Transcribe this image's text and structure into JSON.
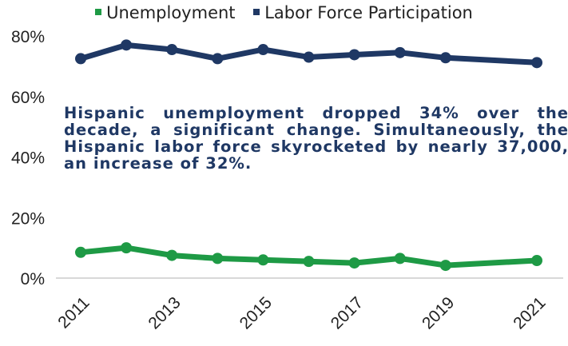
{
  "chart_data": {
    "type": "line",
    "x": [
      "2011",
      "2012",
      "2013",
      "2014",
      "2015",
      "2016",
      "2017",
      "2018",
      "2019",
      "2020",
      "2021"
    ],
    "x_tick_labels": [
      "2011",
      "2013",
      "2015",
      "2017",
      "2019",
      "2021"
    ],
    "y_tick_labels": [
      "0%",
      "20%",
      "40%",
      "60%",
      "80%"
    ],
    "ylim": [
      0,
      80
    ],
    "grid": false,
    "legend_position": "top",
    "series": [
      {
        "name": "Unemployment",
        "color": "#1e9a45",
        "values": [
          8.5,
          10.0,
          7.5,
          6.5,
          6.0,
          5.5,
          5.0,
          6.5,
          4.2,
          null,
          5.8
        ]
      },
      {
        "name": "Labor Force Participation",
        "color": "#1f3864",
        "values": [
          72.5,
          77.0,
          75.5,
          72.5,
          75.5,
          73.0,
          73.8,
          74.5,
          72.8,
          null,
          71.2
        ]
      }
    ],
    "annotation": "Hispanic unemployment dropped 34% over the decade, a significant change. Simultaneously, the Hispanic labor force skyrocketed by nearly 37,000, an increase of 32%."
  }
}
